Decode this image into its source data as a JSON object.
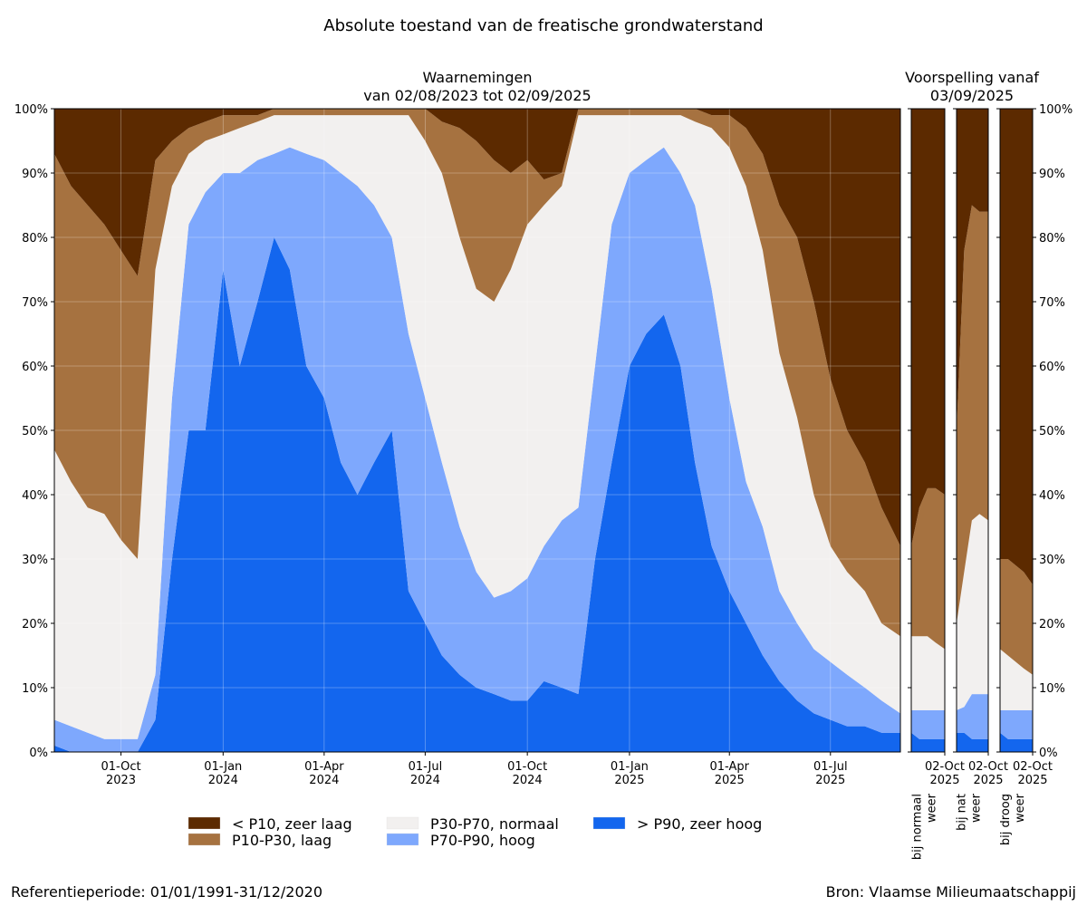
{
  "title": "Absolute toestand van de freatische grondwaterstand",
  "forecast_title": "Voorspelling vanaf\n03/09/2025",
  "footer_left": "Referentieperiode: 01/01/1991-31/12/2020",
  "footer_right": "Bron: Vlaamse Milieumaatschappij",
  "chart_data": [
    {
      "type": "stacked-area",
      "title": "Waarnemingen\nvan 02/08/2023 tot 02/09/2025",
      "grid": true,
      "xlim": [
        "2023-08-02",
        "2025-09-02"
      ],
      "xticks": [
        {
          "value": "2023-10-01",
          "label": "01-Oct\n2023"
        },
        {
          "value": "2024-01-01",
          "label": "01-Jan\n2024"
        },
        {
          "value": "2024-04-01",
          "label": "01-Apr\n2024"
        },
        {
          "value": "2024-07-01",
          "label": "01-Jul\n2024"
        },
        {
          "value": "2024-10-01",
          "label": "01-Oct\n2024"
        },
        {
          "value": "2025-01-01",
          "label": "01-Jan\n2025"
        },
        {
          "value": "2025-04-01",
          "label": "01-Apr\n2025"
        },
        {
          "value": "2025-07-01",
          "label": "01-Jul\n2025"
        }
      ],
      "ylim": [
        0,
        100
      ],
      "yticks": [
        {
          "value": 0,
          "label": "0%"
        },
        {
          "value": 10,
          "label": "10%"
        },
        {
          "value": 20,
          "label": "20%"
        },
        {
          "value": 30,
          "label": "30%"
        },
        {
          "value": 40,
          "label": "40%"
        },
        {
          "value": 50,
          "label": "50%"
        },
        {
          "value": 60,
          "label": "60%"
        },
        {
          "value": 70,
          "label": "70%"
        },
        {
          "value": 80,
          "label": "80%"
        },
        {
          "value": 90,
          "label": "90%"
        },
        {
          "value": 100,
          "label": "100%"
        }
      ],
      "x": [
        "2023-08-02",
        "2023-08-17",
        "2023-09-01",
        "2023-09-16",
        "2023-10-01",
        "2023-10-16",
        "2023-11-01",
        "2023-11-16",
        "2023-12-01",
        "2023-12-16",
        "2024-01-01",
        "2024-01-16",
        "2024-02-01",
        "2024-02-16",
        "2024-03-01",
        "2024-03-16",
        "2024-04-01",
        "2024-04-16",
        "2024-05-01",
        "2024-05-16",
        "2024-06-01",
        "2024-06-16",
        "2024-07-01",
        "2024-07-16",
        "2024-08-01",
        "2024-08-16",
        "2024-09-01",
        "2024-09-16",
        "2024-10-01",
        "2024-10-16",
        "2024-11-01",
        "2024-11-16",
        "2024-12-01",
        "2024-12-16",
        "2025-01-01",
        "2025-01-16",
        "2025-02-01",
        "2025-02-16",
        "2025-03-01",
        "2025-03-16",
        "2025-04-01",
        "2025-04-16",
        "2025-05-01",
        "2025-05-16",
        "2025-06-01",
        "2025-06-16",
        "2025-07-01",
        "2025-07-16",
        "2025-08-01",
        "2025-08-16",
        "2025-09-02"
      ],
      "series": [
        {
          "name": "> P90, zeer hoog",
          "color": "#1366ee",
          "values": [
            1,
            0,
            0,
            0,
            0,
            0,
            5,
            30,
            50,
            50,
            75,
            60,
            70,
            80,
            75,
            60,
            55,
            45,
            40,
            45,
            50,
            25,
            20,
            15,
            12,
            10,
            9,
            8,
            8,
            11,
            10,
            9,
            30,
            45,
            60,
            65,
            68,
            60,
            45,
            32,
            25,
            20,
            15,
            11,
            8,
            6,
            5,
            4,
            4,
            3,
            3
          ]
        },
        {
          "name": "P70-P90, hoog",
          "color": "#7ea8fd",
          "values": [
            4,
            4,
            3,
            2,
            2,
            2,
            7,
            25,
            32,
            37,
            15,
            30,
            22,
            13,
            19,
            33,
            37,
            45,
            48,
            40,
            30,
            40,
            35,
            30,
            23,
            18,
            15,
            17,
            19,
            21,
            26,
            29,
            30,
            37,
            30,
            27,
            26,
            30,
            40,
            40,
            30,
            22,
            20,
            14,
            12,
            10,
            9,
            8,
            6,
            5,
            3
          ]
        },
        {
          "name": "P30-P70, normaal",
          "color": "#f2f0ef",
          "values": [
            42,
            38,
            35,
            35,
            31,
            28,
            63,
            33,
            11,
            8,
            6,
            7,
            6,
            6,
            5,
            6,
            7,
            9,
            11,
            14,
            19,
            34,
            40,
            45,
            45,
            44,
            46,
            50,
            55,
            53,
            52,
            61,
            39,
            17,
            9,
            7,
            5,
            9,
            13,
            25,
            39,
            46,
            43,
            37,
            32,
            24,
            18,
            16,
            15,
            12,
            12
          ]
        },
        {
          "name": "P10-P30, laag",
          "color": "#a67240",
          "values": [
            46,
            46,
            47,
            45,
            45,
            44,
            17,
            7,
            4,
            3,
            3,
            2,
            1,
            1,
            1,
            1,
            1,
            1,
            1,
            1,
            1,
            1,
            5,
            8,
            17,
            23,
            22,
            15,
            10,
            4,
            2,
            1,
            1,
            1,
            1,
            1,
            1,
            1,
            2,
            2,
            5,
            9,
            15,
            23,
            28,
            30,
            26,
            22,
            20,
            18,
            14
          ]
        },
        {
          "name": "< P10, zeer laag",
          "color": "#5c2a00",
          "values": [
            7,
            12,
            15,
            18,
            22,
            26,
            8,
            5,
            3,
            2,
            1,
            1,
            1,
            0,
            0,
            0,
            0,
            0,
            0,
            0,
            0,
            0,
            0,
            2,
            3,
            5,
            8,
            10,
            8,
            11,
            10,
            0,
            0,
            0,
            0,
            0,
            0,
            0,
            0,
            1,
            1,
            3,
            7,
            15,
            20,
            30,
            42,
            50,
            55,
            62,
            68
          ]
        }
      ]
    },
    {
      "type": "stacked-area",
      "title": "bij normaal\nweer",
      "xlim": [
        "2025-09-03",
        "2025-10-02"
      ],
      "xticks": [
        {
          "value": "2025-10-02",
          "label": "02-Oct\n2025"
        }
      ],
      "ylim": [
        0,
        100
      ],
      "x": [
        "2025-09-03",
        "2025-09-10",
        "2025-09-17",
        "2025-09-24",
        "2025-10-02"
      ],
      "series": [
        {
          "values": [
            3,
            2,
            2,
            2,
            2
          ]
        },
        {
          "values": [
            3.5,
            4.5,
            4.5,
            4.5,
            4.5
          ]
        },
        {
          "values": [
            11.5,
            11.5,
            11.5,
            10.5,
            9.5
          ]
        },
        {
          "values": [
            14,
            20,
            23,
            24,
            24
          ]
        },
        {
          "values": [
            68,
            62,
            59,
            59,
            60
          ]
        }
      ]
    },
    {
      "type": "stacked-area",
      "title": "bij nat\nweer",
      "xlim": [
        "2025-09-03",
        "2025-10-02"
      ],
      "xticks": [
        {
          "value": "2025-10-02",
          "label": "02-Oct\n2025"
        }
      ],
      "ylim": [
        0,
        100
      ],
      "x": [
        "2025-09-03",
        "2025-09-10",
        "2025-09-17",
        "2025-09-24",
        "2025-10-02"
      ],
      "series": [
        {
          "values": [
            3,
            3,
            2,
            2,
            2
          ]
        },
        {
          "values": [
            3.5,
            4,
            7,
            7,
            7
          ]
        },
        {
          "values": [
            13.5,
            21,
            27,
            28,
            27
          ]
        },
        {
          "values": [
            30,
            50,
            49,
            47,
            48
          ]
        },
        {
          "values": [
            50,
            22,
            15,
            16,
            16
          ]
        }
      ]
    },
    {
      "type": "stacked-area",
      "title": "bij droog\nweer",
      "xlim": [
        "2025-09-03",
        "2025-10-02"
      ],
      "xticks": [
        {
          "value": "2025-10-02",
          "label": "02-Oct\n2025"
        }
      ],
      "ylim": [
        0,
        100
      ],
      "x": [
        "2025-09-03",
        "2025-09-10",
        "2025-09-17",
        "2025-09-24",
        "2025-10-02"
      ],
      "series": [
        {
          "values": [
            3,
            2,
            2,
            2,
            2
          ]
        },
        {
          "values": [
            3.5,
            4.5,
            4.5,
            4.5,
            4.5
          ]
        },
        {
          "values": [
            9.5,
            8.5,
            7.5,
            6.5,
            5.5
          ]
        },
        {
          "values": [
            14,
            15,
            15,
            15,
            14
          ]
        },
        {
          "values": [
            70,
            70,
            71,
            72,
            74
          ]
        }
      ]
    }
  ]
}
